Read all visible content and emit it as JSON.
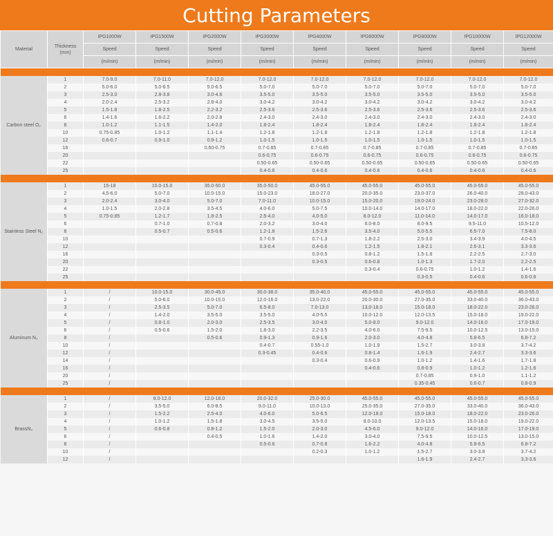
{
  "title": "Cutting Parameters",
  "header": {
    "material": "Material",
    "thickness": "Thickness\n(mm)",
    "speed": "Speed",
    "unit": "(m/min)",
    "models": [
      "IPG1000W",
      "IPG1500W",
      "IPG2000W",
      "IPG3000W",
      "IPG4000W",
      "IPG6000W",
      "IPG8000W",
      "IPG10000W",
      "IPG12000W"
    ]
  },
  "sections": [
    {
      "material": "Carbon steel O₂",
      "rows": [
        [
          "1",
          "7.0-9.0",
          "7.0-11.0",
          "7.0-12.0",
          "7.0-12.0",
          "7.0-12.0",
          "7.0-12.0",
          "7.0-12.0",
          "7.0-12.0",
          "7.0-12.0"
        ],
        [
          "2",
          "5.0-6.0",
          "5.0-6.5",
          "5.0-6.5",
          "5.0-7.0",
          "5.0-7.0",
          "5.0-7.0",
          "5.0-7.0",
          "5.0-7.0",
          "5.0-7.0"
        ],
        [
          "3",
          "2.5-3.0",
          "2.8-3.8",
          "3.0-4.6",
          "3.5-5.0",
          "3.5-5.0",
          "3.5-5.0",
          "3.5-5.0",
          "3.5-5.0",
          "3.5-5.0"
        ],
        [
          "4",
          "2.0-2.4",
          "2.5-3.2",
          "2.8-4.0",
          "3.0-4.2",
          "3.0-4.2",
          "3.0-4.2",
          "3.0-4.2",
          "3.0-4.2",
          "3.0-4.2"
        ],
        [
          "5",
          "1.5-1.8",
          "1.8-2.5",
          "2.2-3.2",
          "2.5-3.6",
          "2.5-3.6",
          "2.5-3.6",
          "2.5-3.6",
          "2.5-3.6",
          "2.5-3.6"
        ],
        [
          "6",
          "1.4-1.6",
          "1.6-2.2",
          "2.0-2.8",
          "2.4-3.0",
          "2.4-3.0",
          "2.4-3.0",
          "2.4-3.0",
          "2.4-3.0",
          "2.4-3.0"
        ],
        [
          "8",
          "1.0-1.2",
          "1.1-1.5",
          "1.4-2.0",
          "1.8-2.4",
          "1.8-2.4",
          "1.8-2.4",
          "1.8-2.4",
          "1.8-2.4",
          "1.8-2.4"
        ],
        [
          "10",
          "0.75-0.85",
          "1.0-1.2",
          "1.1-1.4",
          "1.2-1.8",
          "1.2-1.8",
          "1.2-1.8",
          "1.2-1.8",
          "1.2-1.8",
          "1.2-1.8"
        ],
        [
          "12",
          "0.6-0.7",
          "0.9-1.0",
          "0.9-1.2",
          "1.0-1.5",
          "1.0-1.5",
          "1.0-1.5",
          "1.0-1.5",
          "1.0-1.5",
          "1.0-1.5"
        ],
        [
          "16",
          "",
          "",
          "0.60-0.75",
          "0.7-0.85",
          "0.7-0.85",
          "0.7-0.85",
          "0.7-0.85",
          "0.7-0.85",
          "0.7-0.85"
        ],
        [
          "20",
          "",
          "",
          "",
          "0.6-0.75",
          "0.6-0.75",
          "0.6-0.75",
          "0.6-0.75",
          "0.6-0.75",
          "0.6-0.75"
        ],
        [
          "22",
          "",
          "",
          "",
          "0.50-0.65",
          "0.50-0.65",
          "0.50-0.65",
          "0.50-0.65",
          "0.50-0.65",
          "0.50-0.65"
        ],
        [
          "25",
          "",
          "",
          "",
          "0.4-0.6",
          "0.4-0.6",
          "0.4-0.6",
          "0.4-0.6",
          "0.4-0.6",
          "0.4-0.6"
        ]
      ]
    },
    {
      "material": "Stainless Steel N₂",
      "rows": [
        [
          "1",
          "15-18",
          "10.0-15.0",
          "35.0-50.0",
          "35.0-50.0",
          "45.0-55.0",
          "45.0-55.0",
          "45.0-55.0",
          "45.0-55.0",
          "45.0-55.0"
        ],
        [
          "2",
          "4.5-6.0",
          "5.0-7.0",
          "10.0-15.0",
          "15.0-23.0",
          "18.0-27.0",
          "20.0-35.0",
          "23.0-37.0",
          "26.0-40.0",
          "28.0-43.0"
        ],
        [
          "3",
          "2.0-2.4",
          "3.0-4.0",
          "5.0-7.0",
          "7.0-11.0",
          "10.0-15.0",
          "15.0-20.0",
          "19.0-24.0",
          "23.0-28.0",
          "27.0-32.0"
        ],
        [
          "4",
          "1.0-1.5",
          "2.0-2.8",
          "3.5-4.5",
          "4.0-6.0",
          "5.0-7.5",
          "10.0-14.0",
          "14.0-17.0",
          "18.0-22.0",
          "22.0-26.0"
        ],
        [
          "5",
          "0.75-0.85",
          "1.2-1.7",
          "1.8-2.5",
          "2.5-4.0",
          "4.0-5.0",
          "8.0-12.0",
          "11.0-14.0",
          "14.0-17.0",
          "16.0-18.0"
        ],
        [
          "6",
          "",
          "0.7-1.0",
          "0.7-0.8",
          "2.0-3.2",
          "3.0-4.0",
          "6.0-8.0",
          "8.0-9.5",
          "9.5-11.0",
          "10.5-12.0"
        ],
        [
          "8",
          "",
          "0.5-0.7",
          "0.5-0.6",
          "1.2-1.8",
          "1.5-2.6",
          "3.5-4.0",
          "5.0-5.5",
          "6.5-7.0",
          "7.5-8.0"
        ],
        [
          "10",
          "",
          "",
          "",
          "0.7-0.9",
          "0.7-1.3",
          "1.8-2.2",
          "2.5-3.0",
          "3.4-3.9",
          "4.0-4.5"
        ],
        [
          "12",
          "",
          "",
          "",
          "0.3-0.4",
          "0.4-0.6",
          "1.2-1.5",
          "1.8-2.1",
          "2.6-3.1",
          "3.3-3.6"
        ],
        [
          "16",
          "",
          "",
          "",
          "",
          "0.3-0.5",
          "0.8-1.2",
          "1.5-1.8",
          "2.2-2.5",
          "2.7-3.0"
        ],
        [
          "20",
          "",
          "",
          "",
          "",
          "0.3-0.5",
          "0.6-0.8",
          "1.0-1.3",
          "1.7-2.0",
          "2.2-2.5"
        ],
        [
          "22",
          "",
          "",
          "",
          "",
          "",
          "0.3-0.4",
          "0.6-0.75",
          "1.0-1.2",
          "1.4-1.6"
        ],
        [
          "25",
          "",
          "",
          "",
          "",
          "",
          "",
          "0.3-0.5",
          "0.4-0.6",
          "0.6-0.8"
        ]
      ]
    },
    {
      "material": "Aluminum N₂",
      "rows": [
        [
          "1",
          "/",
          "10.0-15.0",
          "30.0-45.0",
          "30.0-38.0",
          "35.0-40.0",
          "45.0-55.0",
          "45.0-55.0",
          "45.0-55.0",
          "45.0-55.0"
        ],
        [
          "2",
          "/",
          "5.0-6.0",
          "10.0-15.0",
          "12.0-16.0",
          "13.0-22.0",
          "20.0-30.0",
          "27.0-35.0",
          "33.0-40.0",
          "36.0-43.0"
        ],
        [
          "3",
          "/",
          "2.5-3.5",
          "5.0-7.0",
          "6.5-8.0",
          "7.0-13.0",
          "13.0-18.0",
          "15.0-18.0",
          "18.0-22.0",
          "23.0-26.0"
        ],
        [
          "4",
          "/",
          "1.4-2.0",
          "3.5-5.0",
          "3.5-5.0",
          "4.0-5.5",
          "10.0-12.0",
          "12.0-13.5",
          "15.0-18.0",
          "19.0-22.0"
        ],
        [
          "5",
          "/",
          "0.8-1.0",
          "2.0-3.0",
          "2.5-3.5",
          "3.0-4.0",
          "5.0-8.0",
          "9.0-12.0",
          "14.0-16.0",
          "17.0-19.0"
        ],
        [
          "6",
          "/",
          "0.5-0.6",
          "1.5-2.0",
          "1.8-3.0",
          "2.2-3.5",
          "4.0-6.0",
          "7.5-9.5",
          "10.0-12.5",
          "13.0-15.0"
        ],
        [
          "8",
          "/",
          "",
          "0.5-0.6",
          "0.9-1.3",
          "0.9-1.6",
          "2.0-3.0",
          "4.0-4.8",
          "5.8-6.5",
          "6.8-7.2"
        ],
        [
          "10",
          "/",
          "",
          "",
          "0.4-0.7",
          "0.55-1.0",
          "1.0-1.9",
          "1.5-2.7",
          "3.0-3.8",
          "3.7-4.2"
        ],
        [
          "12",
          "/",
          "",
          "",
          "0.3-0.45",
          "0.4-0.6",
          "0.8-1.4",
          "1.6-1.9",
          "2.4-2.7",
          "3.3-3.6"
        ],
        [
          "14",
          "/",
          "",
          "",
          "",
          "0.3-0.4",
          "0.6-0.9",
          "1.0-1.2",
          "1.4-1.6",
          "1.7-1.8"
        ],
        [
          "16",
          "/",
          "",
          "",
          "",
          "",
          "0.4-0.6",
          "0.8-0.9",
          "1.0-1.2",
          "1.2-1.6"
        ],
        [
          "20",
          "/",
          "",
          "",
          "",
          "",
          "",
          "0.7-0.85",
          "0.9-1.0",
          "1.1-1.2"
        ],
        [
          "25",
          "/",
          "",
          "",
          "",
          "",
          "",
          "0.35-0.45",
          "0.6-0.7",
          "0.8-0.9"
        ]
      ]
    },
    {
      "material": "BrassN₂",
      "rows": [
        [
          "1",
          "/",
          "8.0-12.0",
          "12.0-18.0",
          "20.0-32.0",
          "25.0-30.0",
          "45.0-55.0",
          "45.0-55.0",
          "45.0-55.0",
          "45.0-55.0"
        ],
        [
          "2",
          "/",
          "3.5-5.0",
          "6.0-8.5",
          "9.0-11.0",
          "10.0-13.0",
          "25.0-35.0",
          "27.0-35.0",
          "33.0-40.0",
          "36.0-43.0"
        ],
        [
          "3",
          "/",
          "1.5-2.2",
          "2.5-4.0",
          "4.0-6.0",
          "5.0-6.5",
          "12.0-18.0",
          "15.0-18.0",
          "18.0-22.0",
          "23.0-26.0"
        ],
        [
          "4",
          "/",
          "1.0-1.2",
          "1.5-1.8",
          "3.0-4.5",
          "3.5-5.0",
          "8.0-10.0",
          "12.0-13.5",
          "15.0-18.0",
          "19.0-22.0"
        ],
        [
          "5",
          "/",
          "0.6-0.8",
          "0.8-1.2",
          "1.5-2.0",
          "2.0-3.0",
          "4.5-6.0",
          "9.0-12.0",
          "14.0-16.0",
          "17.0-19.0"
        ],
        [
          "6",
          "/",
          "",
          "0.4-0.5",
          "1.0-1.6",
          "1.4-2.0",
          "3.0-4.0",
          "7.5-9.5",
          "10.0-12.5",
          "13.0-15.0"
        ],
        [
          "8",
          "/",
          "",
          "",
          "0.5-0.6",
          "0.7-0.8",
          "1.6-2.2",
          "4.0-4.8",
          "5.8-6.5",
          "6.8-7.2"
        ],
        [
          "10",
          "/",
          "",
          "",
          "",
          "0.2-0.3",
          "1.0-1.2",
          "1.5-2.7",
          "3.0-3.8",
          "3.7-4.2"
        ],
        [
          "12",
          "/",
          "",
          "",
          "",
          "",
          "",
          "1.6-1.9",
          "2.4-2.7",
          "3.3-3.6"
        ]
      ]
    }
  ]
}
